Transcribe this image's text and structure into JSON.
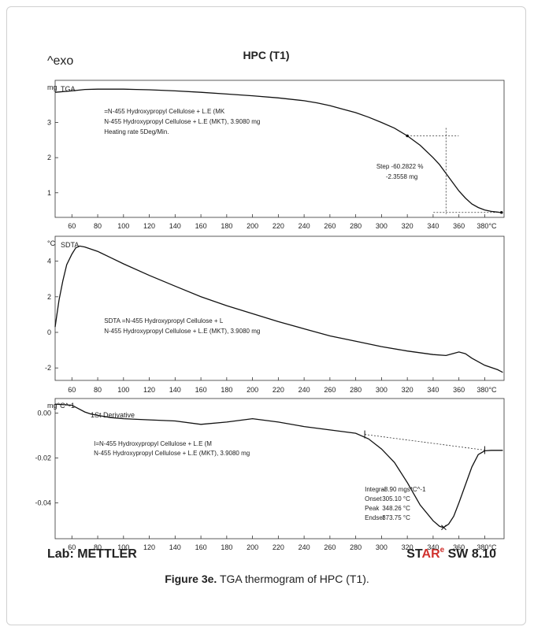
{
  "header": {
    "exo_label": "^exo",
    "title": "HPC (T1)"
  },
  "footer": {
    "lab": "Lab: METTLER",
    "star_st": "ST",
    "star_ar": "AR",
    "star_reg": "e",
    "star_rest": " SW 8.10"
  },
  "caption": {
    "bold": "Figure 3e.",
    "text": " TGA thermogram of HPC (T1)."
  },
  "x_axis": {
    "ticks": [
      60,
      80,
      100,
      120,
      140,
      160,
      180,
      200,
      220,
      240,
      260,
      280,
      300,
      320,
      340,
      360,
      380
    ],
    "last_label": "380°C",
    "min": 47,
    "max": 395
  },
  "chart_data": [
    {
      "type": "line",
      "panel": "tga",
      "unit_label": "mg",
      "panel_label": "TGA",
      "yticks": [
        {
          "v": 3,
          "t": "3"
        },
        {
          "v": 2,
          "t": "2"
        },
        {
          "v": 1,
          "t": "1"
        }
      ],
      "ylim": [
        0.3,
        4.2
      ],
      "legend": [
        "=N-455 Hydroxypropyl Cellulose + L.E (MK",
        "N-455 Hydroxypropyl Cellulose + L.E (MKT), 3.9080 mg",
        "Heating rate 5Deg/Min."
      ],
      "step_annotation": [
        "Step  -60.2822 %",
        "-2.3558 mg"
      ],
      "series": [
        {
          "x": [
            47,
            60,
            70,
            80,
            90,
            100,
            110,
            120,
            140,
            160,
            180,
            200,
            220,
            240,
            250,
            260,
            270,
            280,
            290,
            300,
            310,
            320,
            330,
            340,
            345,
            350,
            355,
            360,
            365,
            370,
            375,
            380,
            385,
            390,
            394
          ],
          "y": [
            3.86,
            3.9,
            3.94,
            3.95,
            3.95,
            3.95,
            3.94,
            3.93,
            3.9,
            3.86,
            3.81,
            3.76,
            3.7,
            3.62,
            3.56,
            3.48,
            3.38,
            3.28,
            3.15,
            3.0,
            2.84,
            2.62,
            2.35,
            2.0,
            1.8,
            1.55,
            1.3,
            1.05,
            0.85,
            0.68,
            0.58,
            0.51,
            0.47,
            0.45,
            0.43
          ]
        }
      ]
    },
    {
      "type": "line",
      "panel": "sdta",
      "unit_label": "°C",
      "panel_label": "SDTA",
      "yticks": [
        {
          "v": 4,
          "t": "4"
        },
        {
          "v": 2,
          "t": "2"
        },
        {
          "v": 0,
          "t": "0"
        },
        {
          "v": -2,
          "t": "-2"
        }
      ],
      "ylim": [
        -2.7,
        5.4
      ],
      "legend": [
        "SDTA =N-455 Hydroxypropyl Cellulose + L",
        "N-455 Hydroxypropyl Cellulose + L.E (MKT), 3.9080 mg"
      ],
      "series": [
        {
          "x": [
            47,
            48,
            50,
            53,
            56,
            60,
            63,
            66,
            70,
            80,
            90,
            100,
            120,
            140,
            160,
            180,
            200,
            220,
            240,
            260,
            280,
            300,
            320,
            340,
            350,
            355,
            360,
            365,
            370,
            380,
            390,
            394
          ],
          "y": [
            0.3,
            0.8,
            1.8,
            2.9,
            3.8,
            4.4,
            4.75,
            4.85,
            4.8,
            4.55,
            4.2,
            3.85,
            3.2,
            2.6,
            2.0,
            1.5,
            1.05,
            0.6,
            0.2,
            -0.2,
            -0.5,
            -0.8,
            -1.05,
            -1.25,
            -1.3,
            -1.2,
            -1.1,
            -1.2,
            -1.45,
            -1.85,
            -2.1,
            -2.25
          ]
        }
      ]
    },
    {
      "type": "line",
      "panel": "derivative",
      "unit_label": "mg°C^-1",
      "panel_label": "1St Derivative",
      "yticks": [
        {
          "v": 0,
          "t": "0.00"
        },
        {
          "v": -0.02,
          "t": "-0.02"
        },
        {
          "v": -0.04,
          "t": "-0.04"
        }
      ],
      "ylim": [
        -0.056,
        0.0065
      ],
      "legend": [
        "I=N-455 Hydroxypropyl Cellulose + L.E (M",
        "N-455 Hydroxypropyl Cellulose + L.E (MKT), 3.9080 mg"
      ],
      "results": [
        {
          "label": "Integral",
          "value": "-8.90 mgs*C^-1"
        },
        {
          "label": "Onset",
          "value": "305.10 °C"
        },
        {
          "label": "Peak",
          "value": "348.26 °C"
        },
        {
          "label": "Endset",
          "value": "373.75 °C"
        }
      ],
      "baseline": {
        "x": [
          287,
          380
        ],
        "y": [
          -0.0095,
          -0.0165
        ]
      },
      "series": [
        {
          "x": [
            47,
            60,
            65,
            70,
            75,
            80,
            90,
            100,
            120,
            140,
            160,
            180,
            200,
            220,
            240,
            260,
            280,
            290,
            300,
            310,
            320,
            330,
            340,
            345,
            348,
            352,
            356,
            360,
            365,
            370,
            375,
            380,
            385,
            394
          ],
          "y": [
            0.004,
            0.0035,
            0.002,
            0.0005,
            -0.0005,
            -0.001,
            -0.002,
            -0.0025,
            -0.003,
            -0.0035,
            -0.005,
            -0.004,
            -0.0025,
            -0.004,
            -0.006,
            -0.0075,
            -0.009,
            -0.0115,
            -0.016,
            -0.022,
            -0.031,
            -0.041,
            -0.048,
            -0.0505,
            -0.051,
            -0.0495,
            -0.046,
            -0.04,
            -0.032,
            -0.024,
            -0.0185,
            -0.0168,
            -0.0166,
            -0.0166
          ]
        }
      ]
    }
  ]
}
